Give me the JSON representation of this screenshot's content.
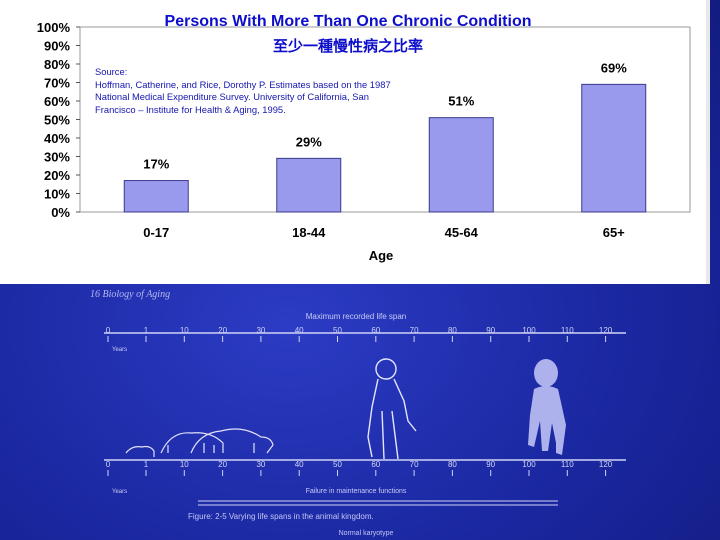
{
  "chart_data": {
    "type": "bar",
    "title": "Persons With More Than One Chronic Condition",
    "subtitle": "至少一種慢性病之比率",
    "source": "Source: Hoffman, Catherine, and Rice, Dorothy P. Estimates based on the 1987 National Medical Expenditure Survey. University of California, San Francisco – Institute for Health & Aging, 1995.",
    "source_lines": [
      "Source:",
      "Hoffman, Catherine, and  Rice, Dorothy P. Estimates based on the 1987",
      "National Medical Expenditure Survey. University of California, San",
      "Francisco – Institute for Health & Aging, 1995."
    ],
    "categories": [
      "0-17",
      "18-44",
      "45-64",
      "65+"
    ],
    "values": [
      17,
      29,
      51,
      69
    ],
    "data_labels": [
      "17%",
      "29%",
      "51%",
      "69%"
    ],
    "xlabel": "Age",
    "ylabel": "",
    "ylim": [
      0,
      100
    ],
    "yticks": [
      "0%",
      "10%",
      "20%",
      "30%",
      "40%",
      "50%",
      "60%",
      "70%",
      "80%",
      "90%",
      "100%"
    ],
    "grid": false,
    "legend": "none",
    "bar_color": "#9999ee",
    "bar_border": "#3a3a8c"
  },
  "figure": {
    "header": "16   Biology of Aging",
    "top_axis_title": "Maximum recorded life span",
    "top_axis_unit": "Years",
    "top_ticks": [
      "0",
      "1",
      "10",
      "20",
      "30",
      "40",
      "50",
      "60",
      "70",
      "80",
      "90",
      "100",
      "110",
      "120"
    ],
    "bottom_ticks": [
      "0",
      "1",
      "10",
      "20",
      "30",
      "40",
      "50",
      "60",
      "70",
      "80",
      "90",
      "100",
      "110",
      "120"
    ],
    "bottom_axis_unit": "Years",
    "bottom_axis_title": "Failure in maintenance functions",
    "caption": "Figure: 2-5     Varying life spans in the animal kingdom.",
    "footer": "Normal karyotype",
    "line_color": "#d0d3f5"
  }
}
